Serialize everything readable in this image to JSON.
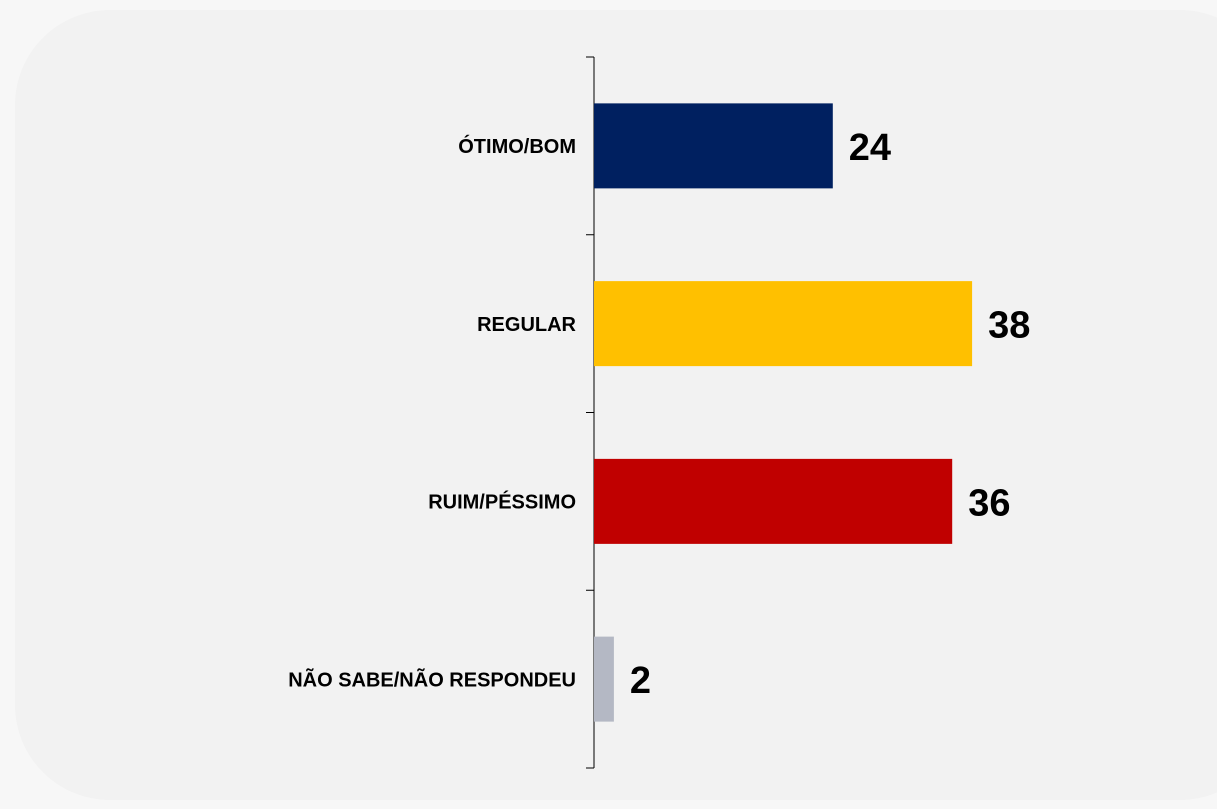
{
  "chart_data": {
    "type": "bar",
    "orientation": "horizontal",
    "categories": [
      "ÓTIMO/BOM",
      "REGULAR",
      "RUIM/PÉSSIMO",
      "NÃO SABE/NÃO RESPONDEU"
    ],
    "values": [
      24,
      38,
      36,
      2
    ],
    "colors": [
      "#002060",
      "#ffc000",
      "#c00000",
      "#b4b8c4"
    ]
  }
}
